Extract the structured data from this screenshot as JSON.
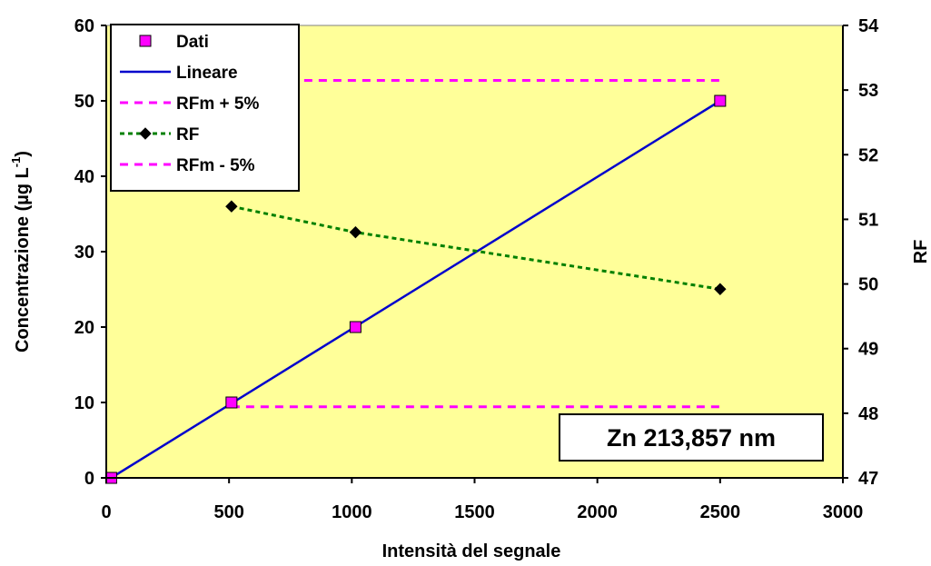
{
  "chart_data": {
    "type": "scatter",
    "xlabel": "Intensità del segnale",
    "ylabel": "Concentrazione (µg L",
    "ylabel_sup": "-1",
    "ylabel_close": ")",
    "y2label": "RF",
    "xlim": [
      0,
      3000
    ],
    "ylim": [
      0,
      60
    ],
    "y2lim": [
      47,
      54
    ],
    "xticks": [
      0,
      500,
      1000,
      1500,
      2000,
      2500,
      3000
    ],
    "yticks": [
      0,
      10,
      20,
      30,
      40,
      50,
      60
    ],
    "y2ticks": [
      47,
      48,
      49,
      50,
      51,
      52,
      53,
      54
    ],
    "plot_background": "#FFFF99",
    "grid": false,
    "legend_position": "top-left",
    "annotation": "Zn 213,857 nm",
    "series": [
      {
        "name": "Dati",
        "kind": "markers",
        "marker": "square",
        "color": "#FF00FF",
        "axis": "left",
        "x": [
          20,
          510,
          1015,
          2500
        ],
        "y": [
          0,
          10,
          20,
          50
        ]
      },
      {
        "name": "Lineare",
        "kind": "line",
        "color": "#0000CC",
        "axis": "left",
        "x": [
          20,
          2500
        ],
        "y": [
          0,
          50
        ]
      },
      {
        "name": "RFm + 5%",
        "kind": "dashed-line",
        "color": "#FF00FF",
        "axis": "right",
        "x": [
          510,
          2500
        ],
        "y": [
          53.15,
          53.15
        ]
      },
      {
        "name": "RF",
        "kind": "dotted-line-markers",
        "marker": "diamond",
        "color": "#008000",
        "marker_color": "#000000",
        "axis": "right",
        "x": [
          510,
          1015,
          2500
        ],
        "y": [
          51.2,
          50.8,
          49.92
        ]
      },
      {
        "name": "RFm - 5%",
        "kind": "dashed-line",
        "color": "#FF00FF",
        "axis": "right",
        "x": [
          510,
          2500
        ],
        "y": [
          48.1,
          48.1
        ]
      }
    ]
  }
}
